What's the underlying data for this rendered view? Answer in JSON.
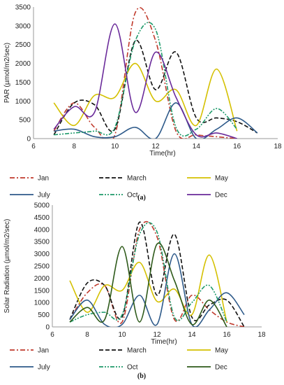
{
  "chart_data": [
    {
      "type": "line",
      "caption": "(a)",
      "xlabel": "Time(hr)",
      "ylabel": "PAR (µmol/m2/sec)",
      "xlim": [
        6,
        18
      ],
      "ylim": [
        0,
        3500
      ],
      "xticks": [
        6,
        8,
        10,
        12,
        14,
        16,
        18
      ],
      "yticks": [
        0,
        500,
        1000,
        1500,
        2000,
        2500,
        3000,
        3500
      ],
      "legend_position": "bottom",
      "series": [
        {
          "name": "Jan",
          "color": "#c0392b",
          "dash": "dashdot",
          "x": [
            7,
            8,
            9,
            10,
            11,
            12,
            13,
            14,
            15,
            16
          ],
          "y": [
            200,
            950,
            300,
            100,
            3350,
            2600,
            200,
            100,
            50,
            0
          ]
        },
        {
          "name": "March",
          "color": "#111111",
          "dash": "dash",
          "x": [
            7,
            8,
            9,
            10,
            11,
            12,
            13,
            14,
            15,
            16,
            17
          ],
          "y": [
            100,
            950,
            900,
            250,
            2600,
            1300,
            2300,
            550,
            550,
            450,
            150
          ]
        },
        {
          "name": "May",
          "color": "#d4c000",
          "dash": "solid",
          "x": [
            7,
            8,
            9,
            10,
            11,
            12,
            13,
            14,
            15,
            16
          ],
          "y": [
            950,
            350,
            1150,
            1100,
            2000,
            1000,
            1300,
            350,
            1850,
            200
          ]
        },
        {
          "name": "July",
          "color": "#2e5a8a",
          "dash": "solid",
          "x": [
            7,
            8,
            9,
            10,
            11,
            12,
            13,
            14,
            15,
            16,
            17
          ],
          "y": [
            200,
            250,
            50,
            50,
            300,
            0,
            950,
            0,
            250,
            550,
            150
          ]
        },
        {
          "name": "Oct",
          "color": "#1e9a6a",
          "dash": "dashdotdot",
          "x": [
            7,
            8,
            9,
            10,
            11,
            12,
            13,
            14,
            15,
            16
          ],
          "y": [
            100,
            150,
            200,
            300,
            2600,
            2900,
            300,
            250,
            800,
            250
          ]
        },
        {
          "name": "Dec",
          "color": "#6a2a9a",
          "dash": "solid",
          "x": [
            7,
            8,
            9,
            10,
            11,
            12,
            13,
            14,
            15,
            16
          ],
          "y": [
            250,
            850,
            700,
            3050,
            700,
            2300,
            1100,
            100,
            150,
            0
          ]
        }
      ]
    },
    {
      "type": "line",
      "caption": "(b)",
      "xlabel": "Time(hr)",
      "ylabel": "Solar Radiation (µmol/m2/sec)",
      "xlim": [
        6,
        18
      ],
      "ylim": [
        0,
        5000
      ],
      "xticks": [
        6,
        8,
        10,
        12,
        14,
        16,
        18
      ],
      "yticks": [
        0,
        500,
        1000,
        1500,
        2000,
        2500,
        3000,
        3500,
        4000,
        4500,
        5000
      ],
      "legend_position": "bottom",
      "series": [
        {
          "name": "Jan",
          "color": "#c0392b",
          "dash": "dashdot",
          "x": [
            7,
            8,
            9,
            10,
            11,
            12,
            13,
            14,
            15,
            16,
            17
          ],
          "y": [
            300,
            1400,
            1700,
            200,
            4000,
            3700,
            300,
            1300,
            700,
            200,
            0
          ]
        },
        {
          "name": "March",
          "color": "#111111",
          "dash": "dash",
          "x": [
            7,
            8,
            9,
            10,
            11,
            12,
            13,
            14,
            15,
            16,
            17
          ],
          "y": [
            300,
            1800,
            1700,
            400,
            4300,
            1300,
            3800,
            400,
            900,
            1100,
            0
          ]
        },
        {
          "name": "May",
          "color": "#d4c000",
          "dash": "solid",
          "x": [
            7,
            8,
            9,
            10,
            11,
            12,
            13,
            14,
            15,
            16
          ],
          "y": [
            1900,
            600,
            1700,
            1500,
            2650,
            1050,
            1550,
            500,
            2950,
            200
          ]
        },
        {
          "name": "July",
          "color": "#2e5a8a",
          "dash": "solid",
          "x": [
            7,
            8,
            9,
            10,
            11,
            12,
            13,
            14,
            15,
            16,
            17
          ],
          "y": [
            300,
            1100,
            100,
            100,
            1300,
            100,
            3000,
            100,
            700,
            1400,
            500
          ]
        },
        {
          "name": "Oct",
          "color": "#1e9a6a",
          "dash": "dashdotdot",
          "x": [
            7,
            8,
            9,
            10,
            11,
            12,
            13,
            14,
            15,
            16
          ],
          "y": [
            200,
            500,
            600,
            500,
            3800,
            3900,
            400,
            1000,
            1700,
            200
          ]
        },
        {
          "name": "Dec",
          "color": "#2e5a1a",
          "dash": "solid",
          "x": [
            7,
            8,
            9,
            10,
            11,
            12,
            13,
            14,
            15,
            16
          ],
          "y": [
            200,
            800,
            300,
            3300,
            200,
            3400,
            1900,
            100,
            1100,
            0
          ]
        }
      ]
    }
  ]
}
